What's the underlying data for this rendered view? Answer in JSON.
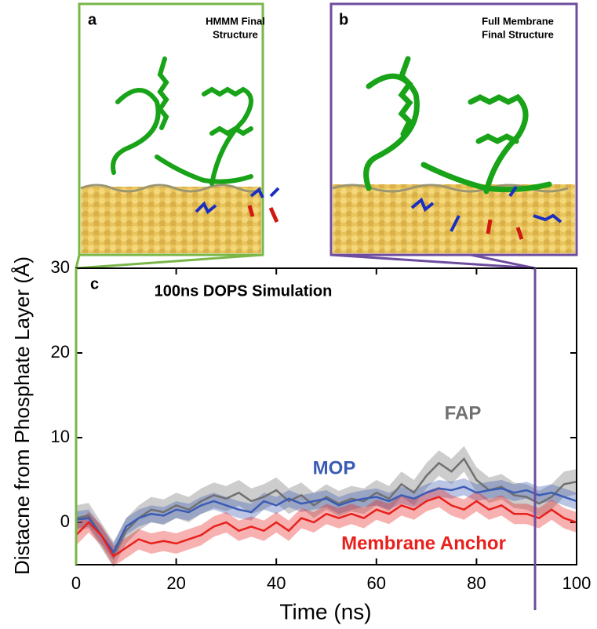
{
  "panels": [
    {
      "label": "a",
      "title": [
        "HMMM Final",
        "Structure"
      ]
    },
    {
      "label": "b",
      "title": [
        "Full Membrane",
        "Final Structure"
      ]
    }
  ],
  "chart_data": {
    "type": "line",
    "label": "c",
    "title": "100ns DOPS Simulation",
    "x_label": "Time (ns)",
    "y_label": "Distacne from Phosphate Layer (Å)",
    "xlim": [
      0,
      100
    ],
    "ylim": [
      -5,
      30
    ],
    "xticks": [
      0,
      20,
      40,
      60,
      80,
      100
    ],
    "yticks": [
      0,
      10,
      20,
      30
    ],
    "x": [
      0,
      2.5,
      5,
      7.5,
      10,
      12.5,
      15,
      17.5,
      20,
      22.5,
      25,
      27.5,
      30,
      32.5,
      35,
      37.5,
      40,
      42.5,
      45,
      47.5,
      50,
      52.5,
      55,
      57.5,
      60,
      62.5,
      65,
      67.5,
      70,
      72.5,
      75,
      77.5,
      80,
      82.5,
      85,
      87.5,
      90,
      92.5,
      95,
      97.5,
      100
    ],
    "series": [
      {
        "name": "FAP",
        "color": "#707070",
        "band": 1.5,
        "values": [
          0.5,
          0.8,
          -1.5,
          -3.8,
          -1,
          0.5,
          1.5,
          1.2,
          2.0,
          1.5,
          2.5,
          3.2,
          2.8,
          3.5,
          2.5,
          3.0,
          3.8,
          2.5,
          3.2,
          2.0,
          3.0,
          2.2,
          2.8,
          2.5,
          3.5,
          2.8,
          4.5,
          3.5,
          5.5,
          7.0,
          6.0,
          7.5,
          5.0,
          3.8,
          4.2,
          3.2,
          3.0,
          2.2,
          3.0,
          4.5,
          4.8
        ]
      },
      {
        "name": "MOP",
        "color": "#3b5cb5",
        "band": 1.0,
        "values": [
          0.3,
          0.5,
          -1.5,
          -3.5,
          -0.5,
          0.5,
          1.0,
          0.8,
          1.5,
          1.2,
          2.0,
          2.5,
          2.0,
          1.5,
          1.2,
          2.5,
          2.0,
          2.8,
          2.2,
          2.5,
          2.8,
          2.0,
          2.5,
          2.8,
          3.0,
          2.5,
          3.2,
          2.8,
          3.5,
          4.0,
          3.8,
          4.2,
          3.5,
          3.8,
          4.0,
          3.5,
          3.8,
          3.2,
          3.5,
          3.0,
          2.5
        ]
      },
      {
        "name": "Membrane Anchor",
        "color": "#e8201c",
        "band": 1.2,
        "values": [
          -1.5,
          0,
          -1.5,
          -4.0,
          -3.0,
          -2.0,
          -2.5,
          -2.2,
          -2.5,
          -2.0,
          -1.5,
          -0.5,
          0,
          -1.0,
          -0.5,
          -1.0,
          0,
          -1.0,
          0.5,
          0,
          1.0,
          0.5,
          1.0,
          0.5,
          1.5,
          1.0,
          2.0,
          1.5,
          2.5,
          3.0,
          2.0,
          1.5,
          2.5,
          1.5,
          2.0,
          1.0,
          1.0,
          0.5,
          1.5,
          0.5,
          0.0
        ]
      }
    ]
  }
}
